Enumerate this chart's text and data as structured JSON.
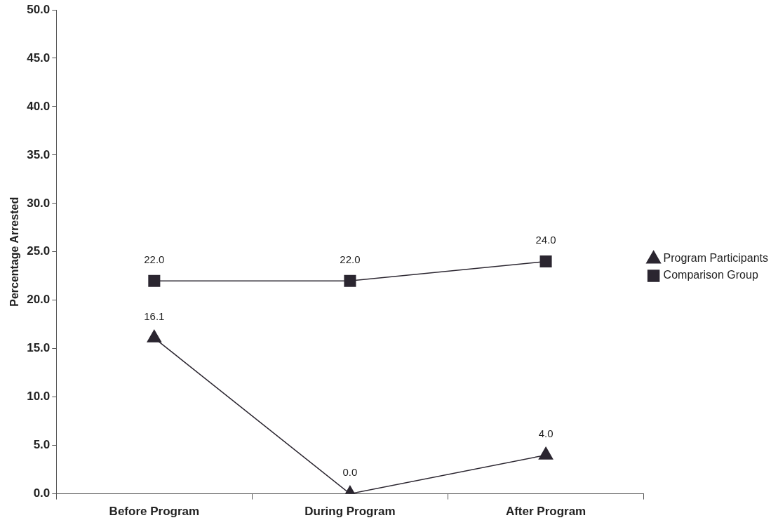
{
  "chart_data": {
    "type": "line",
    "ylabel": "Percentage Arrested",
    "categories": [
      "Before Program",
      "During Program",
      "After Program"
    ],
    "series": [
      {
        "name": "Program Participants",
        "color": "#2b2630",
        "marker": "triangle",
        "values": [
          16.1,
          0.0,
          4.0
        ],
        "value_labels": [
          "16.1",
          "0.0",
          "4.0"
        ]
      },
      {
        "name": "Comparison Group",
        "color": "#2b2630",
        "marker": "square",
        "values": [
          22.0,
          22.0,
          24.0
        ],
        "value_labels": [
          "22.0",
          "22.0",
          "24.0"
        ]
      }
    ],
    "ylim": [
      0,
      50
    ],
    "yticks": [
      {
        "value": 0,
        "label": "0.0"
      },
      {
        "value": 5,
        "label": "5.0"
      },
      {
        "value": 10,
        "label": "10.0"
      },
      {
        "value": 15,
        "label": "15.0"
      },
      {
        "value": 20,
        "label": "20.0"
      },
      {
        "value": 25,
        "label": "25.0"
      },
      {
        "value": 30,
        "label": "30.0"
      },
      {
        "value": 35,
        "label": "35.0"
      },
      {
        "value": 40,
        "label": "40.0"
      },
      {
        "value": 45,
        "label": "45.0"
      },
      {
        "value": 50,
        "label": "50.0"
      }
    ],
    "grid": false,
    "legend": "right",
    "line_style": "solid"
  }
}
